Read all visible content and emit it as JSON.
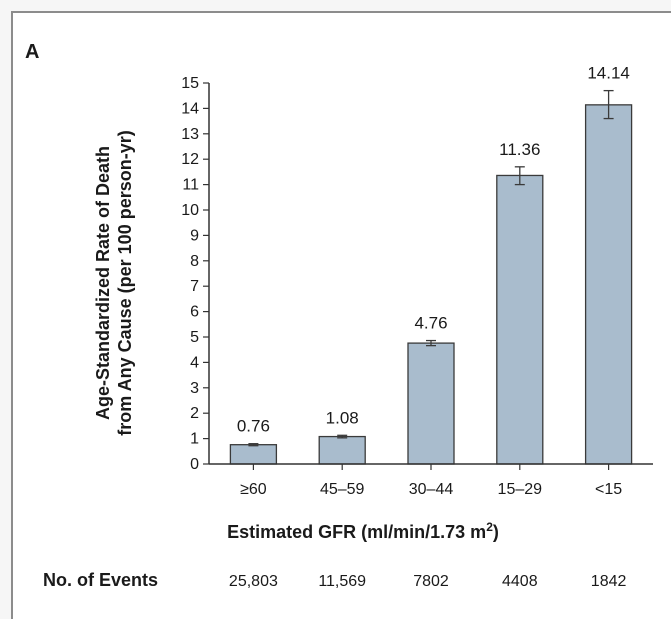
{
  "panel_label": "A",
  "colors": {
    "bar_fill": "#a9bccd",
    "bar_stroke": "#3a3a3a",
    "axis": "#333333",
    "text": "#1a1a1a"
  },
  "chart_data": {
    "type": "bar",
    "categories": [
      "≥60",
      "45–59",
      "30–44",
      "15–29",
      "<15"
    ],
    "values": [
      0.76,
      1.08,
      4.76,
      11.36,
      14.14
    ],
    "value_labels": [
      "0.76",
      "1.08",
      "4.76",
      "11.36",
      "14.14"
    ],
    "error_bars": [
      [
        0.72,
        0.8
      ],
      [
        1.03,
        1.13
      ],
      [
        4.66,
        4.86
      ],
      [
        11.0,
        11.7
      ],
      [
        13.6,
        14.7
      ]
    ],
    "ylabel_line1": "Age-Standardized Rate of Death",
    "ylabel_line2": "from Any Cause (per 100 person-yr)",
    "xlabel_main": "Estimated GFR (ml/min/1.73 m",
    "xlabel_sup": "2",
    "xlabel_end": ")",
    "ylim": [
      0,
      15
    ],
    "yticks": [
      0,
      1,
      2,
      3,
      4,
      5,
      6,
      7,
      8,
      9,
      10,
      11,
      12,
      13,
      14,
      15
    ],
    "grid": false,
    "legend": "none"
  },
  "events": {
    "label": "No. of Events",
    "values": [
      "25,803",
      "11,569",
      "7802",
      "4408",
      "1842"
    ]
  }
}
